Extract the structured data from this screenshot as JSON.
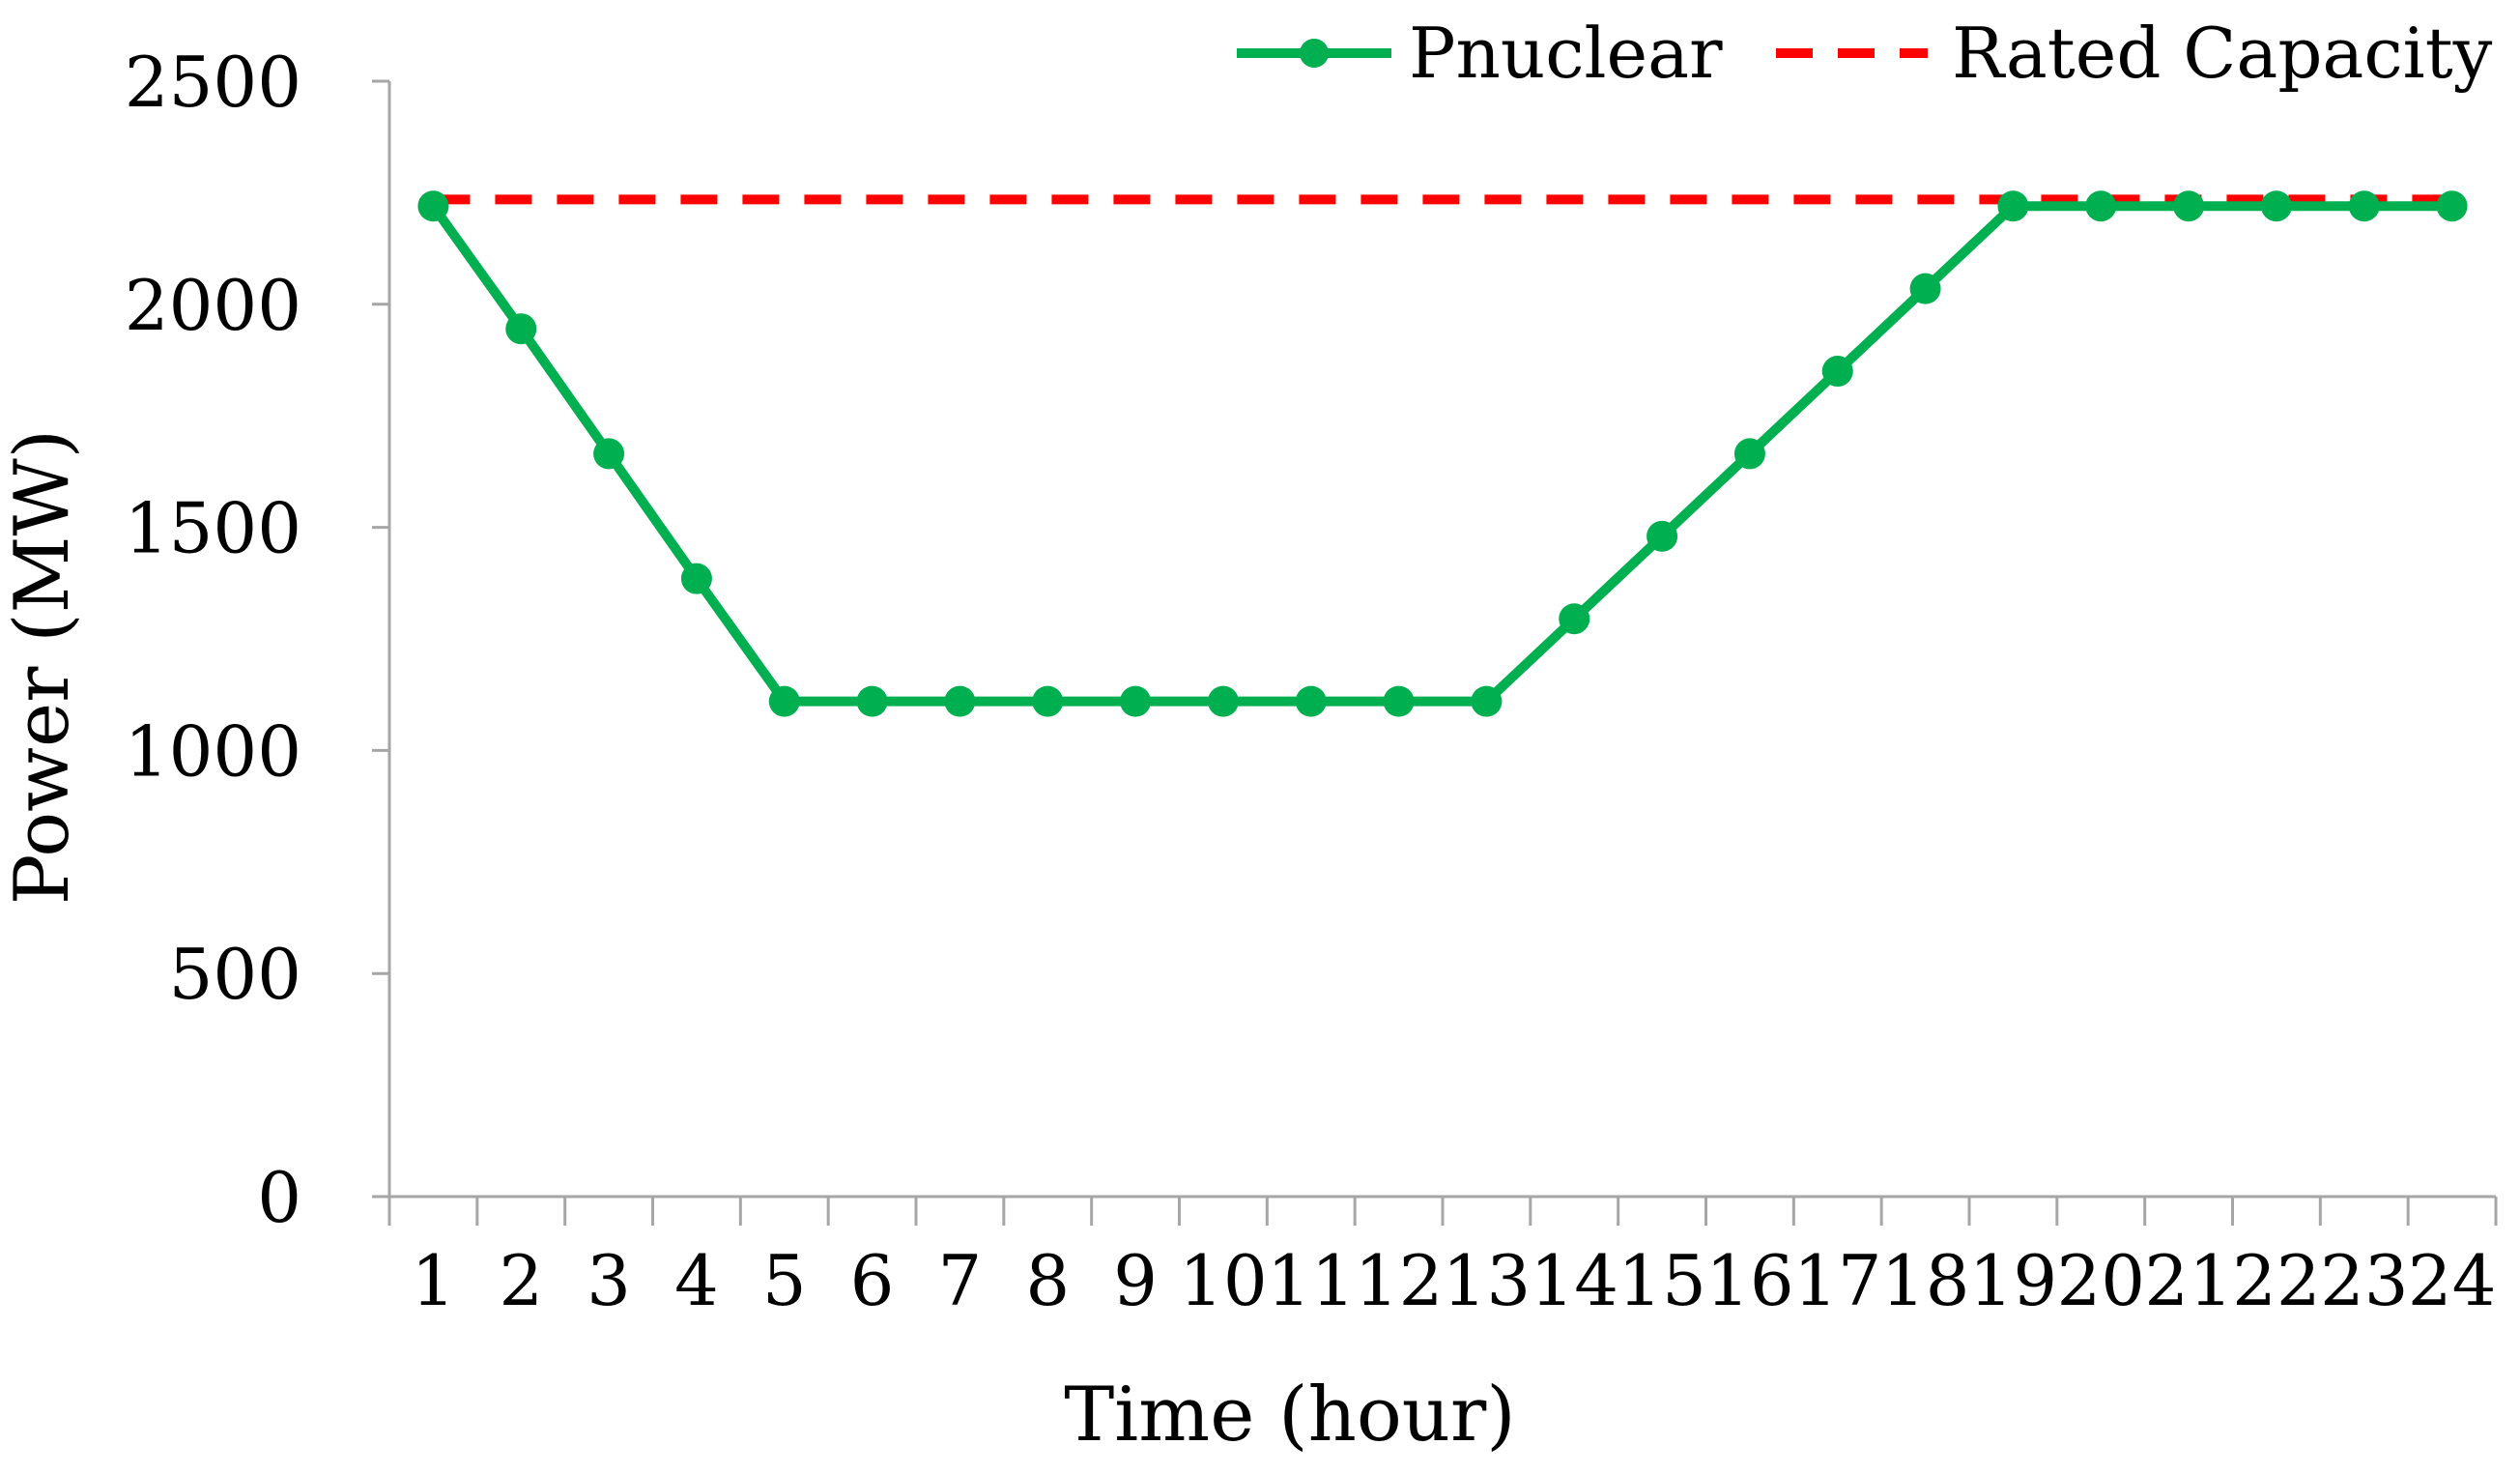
{
  "chart_data": {
    "type": "line",
    "title": "",
    "xlabel": "Time (hour)",
    "ylabel": "Power (MW)",
    "categories": [
      "1",
      "2",
      "3",
      "4",
      "5",
      "6",
      "7",
      "8",
      "9",
      "10",
      "11",
      "12",
      "13",
      "14",
      "15",
      "16",
      "17",
      "18",
      "19",
      "20",
      "21",
      "22",
      "23",
      "24"
    ],
    "ylim": [
      0,
      2500
    ],
    "yticks": [
      "0",
      "500",
      "1000",
      "1500",
      "2000",
      "2500"
    ],
    "grid": false,
    "legend_position": "top-right",
    "series": [
      {
        "name": "Pnuclear",
        "color": "#00b050",
        "style": "solid-with-markers",
        "values": [
          2220,
          1945,
          1665,
          1385,
          1110,
          1110,
          1110,
          1110,
          1110,
          1110,
          1110,
          1110,
          1110,
          1295,
          1480,
          1665,
          1850,
          2035,
          2220,
          2220,
          2220,
          2220,
          2220,
          2220
        ]
      },
      {
        "name": "Rated Capacity",
        "color": "#ff0000",
        "style": "dashed",
        "values": [
          2235,
          2235,
          2235,
          2235,
          2235,
          2235,
          2235,
          2235,
          2235,
          2235,
          2235,
          2235,
          2235,
          2235,
          2235,
          2235,
          2235,
          2235,
          2235,
          2235,
          2235,
          2235,
          2235,
          2235
        ]
      }
    ]
  }
}
